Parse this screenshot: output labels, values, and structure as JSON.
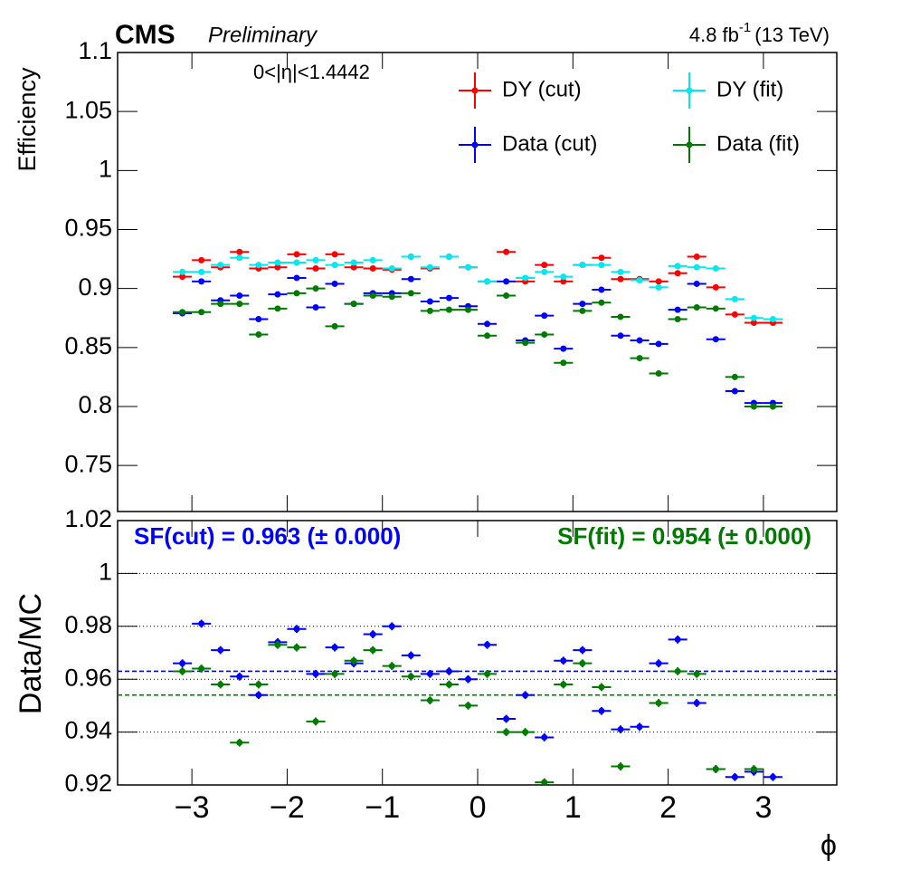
{
  "header": {
    "experiment": "CMS",
    "status": "Preliminary",
    "lumi": "4.8 fb",
    "lumi_sup": "-1",
    "energy": "(13 TeV)"
  },
  "chart_data": [
    {
      "type": "errorbar",
      "ylabel": "Efficiency",
      "annotation": "0<|η|<1.4442",
      "x": [
        -3.1,
        -2.9,
        -2.7,
        -2.5,
        -2.3,
        -2.1,
        -1.9,
        -1.7,
        -1.5,
        -1.3,
        -1.1,
        -0.9,
        -0.7,
        -0.5,
        -0.3,
        -0.1,
        0.1,
        0.3,
        0.5,
        0.7,
        0.9,
        1.1,
        1.3,
        1.5,
        1.7,
        1.9,
        2.1,
        2.3,
        2.5,
        2.7,
        2.9,
        3.1
      ],
      "xerr": 0.1,
      "xlim": [
        -3.78,
        3.77
      ],
      "xticks": [
        -3,
        -2,
        -1,
        0,
        1,
        2,
        3
      ],
      "ylim": [
        0.711,
        1.1
      ],
      "yticks": [
        0.75,
        0.8,
        0.85,
        0.9,
        0.95,
        1,
        1.05,
        1.1
      ],
      "series": [
        {
          "name": "DY (cut)",
          "color": "#ff0000",
          "yerr": 0.002,
          "values": [
            0.91,
            0.924,
            0.918,
            0.931,
            0.917,
            0.918,
            0.929,
            0.917,
            0.929,
            0.918,
            0.917,
            0.916,
            0.927,
            0.917,
            0.927,
            0.918,
            0.906,
            0.931,
            0.906,
            0.92,
            0.906,
            0.92,
            0.926,
            0.908,
            0.908,
            0.906,
            0.913,
            0.927,
            0.901,
            0.878,
            0.871,
            0.871
          ]
        },
        {
          "name": "DY (fit)",
          "color": "#00e8f0",
          "yerr": 0.002,
          "values": [
            0.914,
            0.914,
            0.92,
            0.926,
            0.92,
            0.922,
            0.922,
            0.924,
            0.92,
            0.922,
            0.924,
            0.917,
            0.927,
            0.918,
            0.927,
            0.918,
            0.906,
            0.906,
            0.909,
            0.914,
            0.91,
            0.92,
            0.92,
            0.914,
            0.907,
            0.901,
            0.919,
            0.918,
            0.917,
            0.891,
            0.875,
            0.874
          ]
        },
        {
          "name": "Data (cut)",
          "color": "#0000ff",
          "yerr": 0.002,
          "values": [
            0.879,
            0.906,
            0.89,
            0.894,
            0.874,
            0.895,
            0.909,
            0.884,
            0.904,
            0.887,
            0.896,
            0.896,
            0.908,
            0.889,
            0.892,
            0.885,
            0.87,
            0.906,
            0.856,
            0.877,
            0.849,
            0.887,
            0.899,
            0.86,
            0.856,
            0.853,
            0.882,
            0.904,
            0.857,
            0.813,
            0.803,
            0.803
          ]
        },
        {
          "name": "Data (fit)",
          "color": "#007a00",
          "yerr": 0.002,
          "values": [
            0.88,
            0.88,
            0.887,
            0.887,
            0.861,
            0.883,
            0.896,
            0.9,
            0.868,
            0.887,
            0.894,
            0.893,
            0.896,
            0.881,
            0.882,
            0.882,
            0.86,
            0.894,
            0.854,
            0.861,
            0.837,
            0.881,
            0.888,
            0.876,
            0.841,
            0.828,
            0.874,
            0.884,
            0.883,
            0.825,
            0.8,
            0.8
          ]
        }
      ]
    },
    {
      "type": "errorbar",
      "ylabel": "Data/MC",
      "xlabel": "ϕ",
      "x": [
        -3.1,
        -2.9,
        -2.7,
        -2.5,
        -2.3,
        -2.1,
        -1.9,
        -1.7,
        -1.5,
        -1.3,
        -1.1,
        -0.9,
        -0.7,
        -0.5,
        -0.3,
        -0.1,
        0.1,
        0.3,
        0.5,
        0.7,
        0.9,
        1.1,
        1.3,
        1.5,
        1.7,
        1.9,
        2.1,
        2.3,
        2.5,
        2.7,
        2.9,
        3.1
      ],
      "xerr": 0.1,
      "xlim": [
        -3.78,
        3.77
      ],
      "xticks": [
        {
          "value": -3,
          "label": "−3"
        },
        {
          "value": -2,
          "label": "−2"
        },
        {
          "value": -1,
          "label": "−1"
        },
        0,
        1,
        2,
        3
      ],
      "ylim": [
        0.92,
        1.02
      ],
      "yticks": [
        0.92,
        0.94,
        0.96,
        0.98,
        1,
        1.02
      ],
      "grid": true,
      "series": [
        {
          "name": "Data (cut)",
          "color": "#0000ff",
          "yerr": 0.0015,
          "values": [
            0.966,
            0.981,
            0.971,
            0.961,
            0.954,
            0.974,
            0.979,
            0.962,
            0.972,
            0.966,
            0.977,
            0.98,
            0.969,
            0.962,
            0.963,
            0.96,
            0.973,
            0.945,
            0.954,
            0.938,
            0.967,
            0.971,
            0.948,
            0.941,
            0.942,
            0.966,
            0.975,
            0.951,
            0.926,
            0.923,
            0.925,
            0.923
          ]
        },
        {
          "name": "Data (fit)",
          "color": "#007a00",
          "yerr": 0.0015,
          "values": [
            0.963,
            0.964,
            0.958,
            0.936,
            0.958,
            0.973,
            0.972,
            0.944,
            0.962,
            0.967,
            0.971,
            0.965,
            0.961,
            0.952,
            0.958,
            0.95,
            0.962,
            0.94,
            0.94,
            0.921,
            0.958,
            0.966,
            0.957,
            0.927,
            0.918,
            0.951,
            0.963,
            0.962,
            0.926,
            0.915,
            0.926,
            0.915
          ]
        }
      ],
      "hlines": [
        {
          "value": 0.963,
          "color": "#0000ff"
        },
        {
          "value": 0.954,
          "color": "#007a00"
        }
      ],
      "annotations": [
        {
          "text": "SF(cut) = 0.963 (± 0.000)",
          "color": "#0000ff"
        },
        {
          "text": "SF(fit) = 0.954 (± 0.000)",
          "color": "#007a00"
        }
      ]
    }
  ]
}
